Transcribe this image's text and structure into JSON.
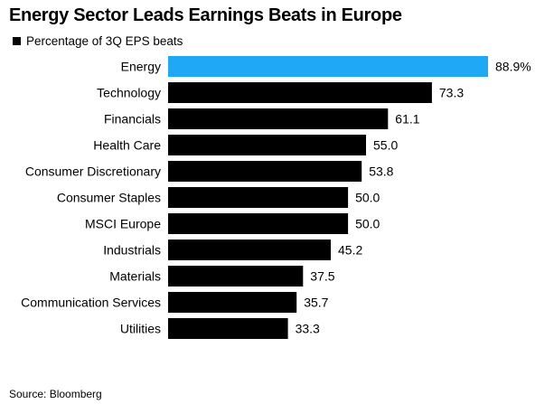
{
  "title": "Energy Sector Leads Earnings Beats in Europe",
  "legend": {
    "label": "Percentage of 3Q EPS beats"
  },
  "source": "Source: Bloomberg",
  "colors": {
    "highlight": "#1fa8f5",
    "bar": "#000000"
  },
  "chart_data": {
    "type": "bar",
    "orientation": "horizontal",
    "categories": [
      "Energy",
      "Technology",
      "Financials",
      "Health Care",
      "Consumer Discretionary",
      "Consumer Staples",
      "MSCI Europe",
      "Industrials",
      "Materials",
      "Communication Services",
      "Utilities"
    ],
    "values": [
      88.9,
      73.3,
      61.1,
      55.0,
      53.8,
      50.0,
      50.0,
      45.2,
      37.5,
      35.7,
      33.3
    ],
    "value_labels": [
      "88.9%",
      "73.3",
      "61.1",
      "55.0",
      "53.8",
      "50.0",
      "50.0",
      "45.2",
      "37.5",
      "35.7",
      "33.3"
    ],
    "highlight_index": 0,
    "series": [
      {
        "name": "Percentage of 3Q EPS beats"
      }
    ],
    "title": "Energy Sector Leads Earnings Beats in Europe",
    "xlabel": "",
    "ylabel": "",
    "xlim": [
      0,
      88.9
    ],
    "grid": false,
    "legend_position": "top-left"
  }
}
